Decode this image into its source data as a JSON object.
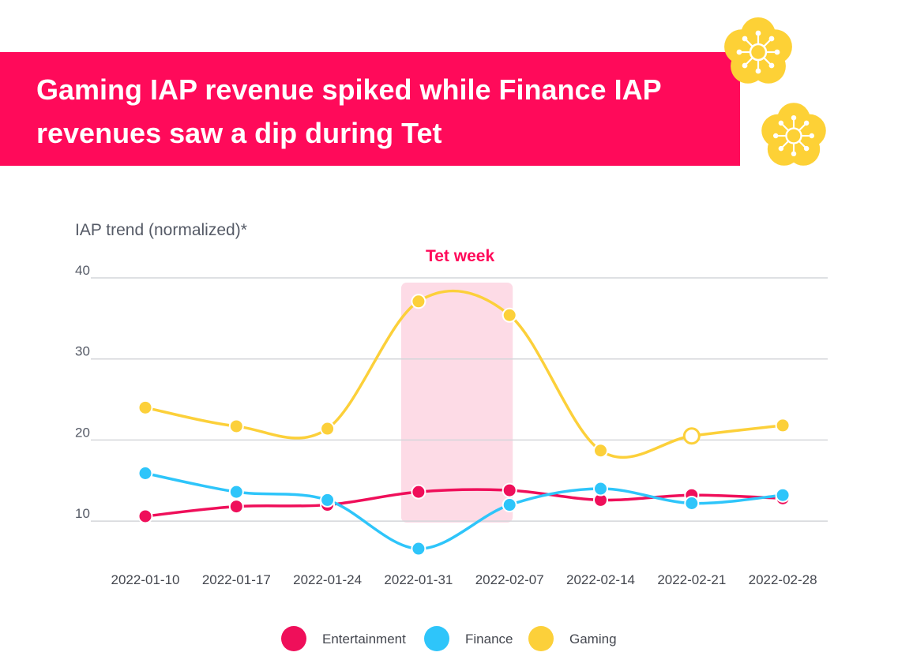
{
  "title": "Gaming IAP revenue spiked while Finance IAP revenues saw a dip during Tet",
  "colors": {
    "banner": "#ff0a5a",
    "entertainment": "#ef0f5a",
    "finance": "#2ec5fa",
    "gaming": "#fcd03a",
    "tet_band": "#fddbe6",
    "flower": "#fdd136"
  },
  "icons": [
    "apricot-blossom-icon",
    "apricot-blossom-icon"
  ],
  "chart_data": {
    "type": "line",
    "ylabel": "IAP trend (normalized)*",
    "ylim": [
      4,
      40
    ],
    "yticks": [
      10,
      20,
      30,
      40
    ],
    "grid": true,
    "x": [
      "2022-01-10",
      "2022-01-17",
      "2022-01-24",
      "2022-01-31",
      "2022-02-07",
      "2022-02-14",
      "2022-02-21",
      "2022-02-28"
    ],
    "series": [
      {
        "name": "Entertainment",
        "values": [
          10.6,
          11.8,
          12.0,
          13.6,
          13.8,
          12.6,
          13.2,
          12.8
        ]
      },
      {
        "name": "Finance",
        "values": [
          15.9,
          13.6,
          12.6,
          6.6,
          12.0,
          14.0,
          12.2,
          13.2
        ]
      },
      {
        "name": "Gaming",
        "values": [
          24.0,
          21.7,
          21.4,
          37.1,
          35.4,
          18.7,
          20.5,
          21.8
        ]
      }
    ],
    "annotations": [
      {
        "label": "Tet week",
        "x_start": "2022-01-31",
        "x_end": "2022-02-07"
      }
    ],
    "highlighted_point": {
      "series": "Gaming",
      "x": "2022-02-21"
    },
    "legend": {
      "position": "bottom-center"
    }
  }
}
